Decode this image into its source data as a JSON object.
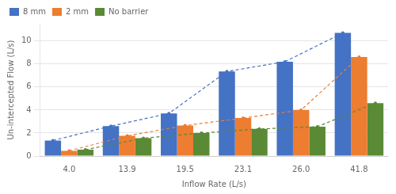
{
  "chart_data": {
    "type": "bar",
    "categories": [
      "4.0",
      "13.9",
      "19.5",
      "23.1",
      "26.0",
      "41.8"
    ],
    "series": [
      {
        "name": "8 mm",
        "color": "#4472c4",
        "values": [
          1.35,
          2.6,
          3.7,
          7.35,
          8.2,
          10.7
        ],
        "line_style": "dashed",
        "marker": "circle"
      },
      {
        "name": "2 mm",
        "color": "#ed7d31",
        "values": [
          0.45,
          1.75,
          2.65,
          3.3,
          4.0,
          8.6
        ],
        "line_style": "dashed",
        "marker": "circle"
      },
      {
        "name": "No barrier",
        "color": "#5a8a35",
        "values": [
          0.55,
          1.55,
          2.0,
          2.35,
          2.55,
          4.6
        ],
        "line_style": "dashed",
        "marker": "circle"
      }
    ],
    "xlabel": "Inflow Rate (L/s)",
    "ylabel": "Un-intercepted Flow (L/s)",
    "ylim": [
      0,
      11.5
    ],
    "yticks": [
      0,
      2,
      4,
      6,
      8,
      10
    ],
    "grid": true,
    "legend": "upper left"
  }
}
